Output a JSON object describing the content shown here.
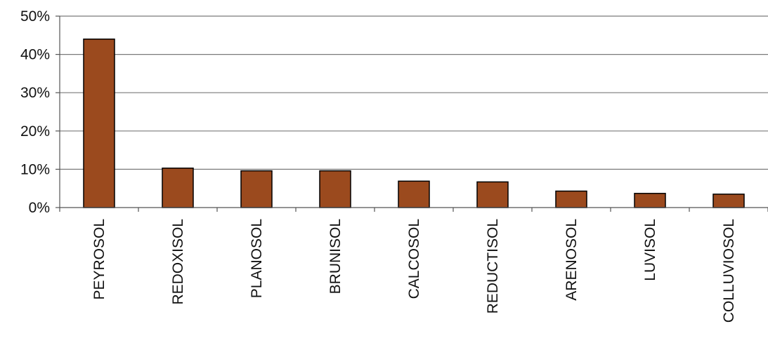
{
  "chart_data": {
    "type": "bar",
    "categories": [
      "PEYROSOL",
      "REDOXISOL",
      "PLANOSOL",
      "BRUNISOL",
      "CALCOSOL",
      "REDUCTISOL",
      "ARENOSOL",
      "LUVISOL",
      "COLLUVIOSOL"
    ],
    "values": [
      44.0,
      10.3,
      9.6,
      9.6,
      6.9,
      6.7,
      4.3,
      3.7,
      3.5
    ],
    "ylim": [
      0,
      50
    ],
    "yticks": [
      "0%",
      "10%",
      "20%",
      "30%",
      "40%",
      "50%"
    ],
    "grid": true,
    "bar_color": "#9B4A1E",
    "bar_edge_color": "#000000"
  }
}
